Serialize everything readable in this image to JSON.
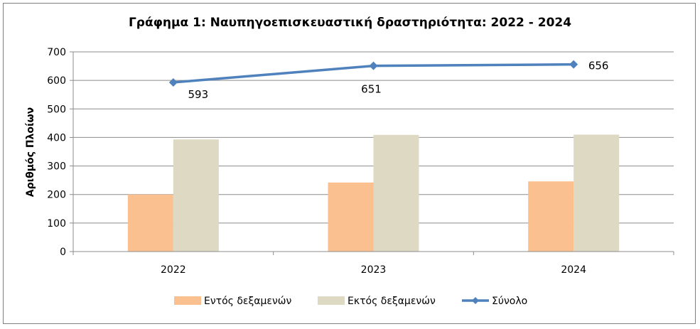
{
  "chart_data": {
    "type": "bar",
    "title": "Γράφημα 1: Ναυπηγοεπισκευαστική δραστηριότητα: 2022 - 2024",
    "ylabel": "Αριθμός Πλοίων",
    "xlabel": "",
    "categories": [
      "2022",
      "2023",
      "2024"
    ],
    "ylim": [
      0,
      700
    ],
    "yticks": [
      "0",
      "100",
      "200",
      "300",
      "400",
      "500",
      "600",
      "700"
    ],
    "series": [
      {
        "name": "Εντός δεξαμενών",
        "type": "bar",
        "color": "#fac090",
        "values": [
          200,
          242,
          246
        ]
      },
      {
        "name": "Εκτός δεξαμενών",
        "type": "bar",
        "color": "#ddd9c3",
        "values": [
          393,
          409,
          410
        ]
      },
      {
        "name": "Σύνολο",
        "type": "line",
        "color": "#4f81bd",
        "values": [
          593,
          651,
          656
        ],
        "labels": [
          "593",
          "651",
          "656"
        ]
      }
    ],
    "grid": "horizontal",
    "legend": "bottom"
  }
}
